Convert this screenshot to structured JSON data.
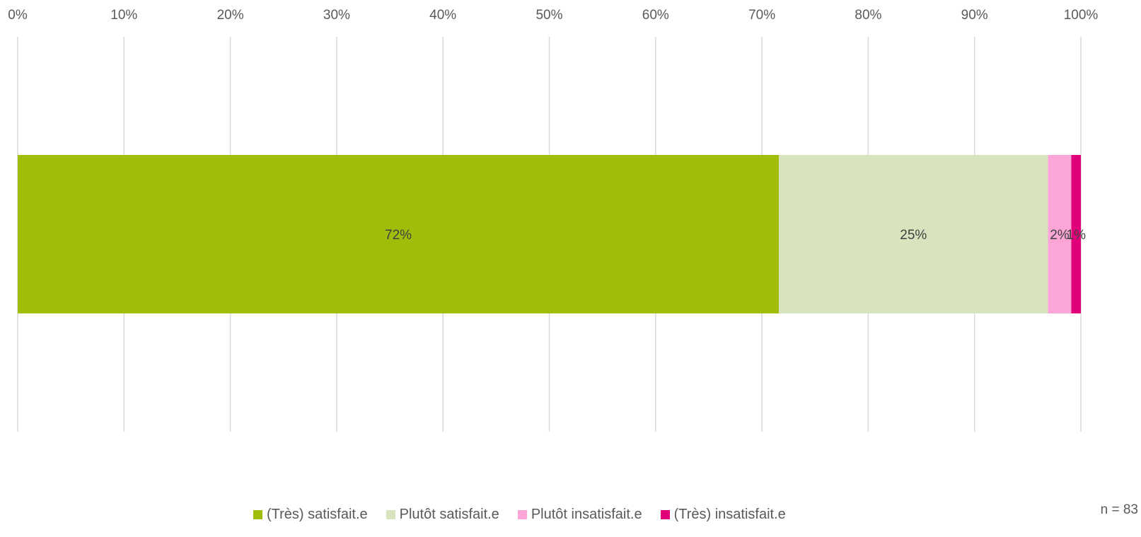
{
  "chart_data": {
    "type": "bar",
    "orientation": "horizontal",
    "stacked": "percent",
    "title": "",
    "xlabel": "",
    "ylabel": "",
    "xlim": [
      0,
      100
    ],
    "x_ticks": [
      "0%",
      "10%",
      "20%",
      "30%",
      "40%",
      "50%",
      "60%",
      "70%",
      "80%",
      "90%",
      "100%"
    ],
    "x_ticks_position": "top",
    "grid": "vertical",
    "legend_position": "bottom",
    "categories": [
      ""
    ],
    "series": [
      {
        "name": "(Très) satisfait.e",
        "values": [
          71.6
        ],
        "label": "72%",
        "color": "#a2bc0a"
      },
      {
        "name": "Plutôt satisfait.e",
        "values": [
          25.3
        ],
        "label": "25%",
        "color": "#d8e4be"
      },
      {
        "name": "Plutôt insatisfait.e",
        "values": [
          2.2
        ],
        "label": "2%",
        "color": "#fba6d6"
      },
      {
        "name": "(Très) insatisfait.e",
        "values": [
          0.9
        ],
        "label": "1%",
        "color": "#e2007a"
      }
    ],
    "annotations": [
      "n = 83"
    ]
  }
}
